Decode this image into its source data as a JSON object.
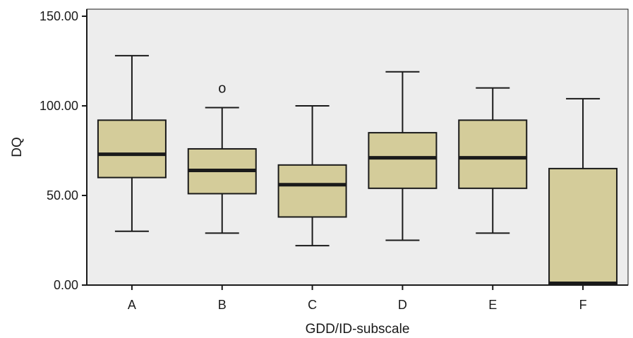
{
  "chart_data": {
    "type": "box",
    "xlabel": "GDD/ID-subscale",
    "ylabel": "DQ",
    "ylim": [
      0,
      150
    ],
    "y_ticks": [
      "0.00",
      "50.00",
      "100.00",
      "150.00"
    ],
    "categories": [
      "A",
      "B",
      "C",
      "D",
      "E",
      "F"
    ],
    "boxes": [
      {
        "category": "A",
        "min": 30,
        "q1": 60,
        "median": 73,
        "q3": 92,
        "max": 128,
        "outliers": []
      },
      {
        "category": "B",
        "min": 29,
        "q1": 51,
        "median": 64,
        "q3": 76,
        "max": 99,
        "outliers": [
          110
        ]
      },
      {
        "category": "C",
        "min": 22,
        "q1": 38,
        "median": 56,
        "q3": 67,
        "max": 100,
        "outliers": []
      },
      {
        "category": "D",
        "min": 25,
        "q1": 54,
        "median": 71,
        "q3": 85,
        "max": 119,
        "outliers": []
      },
      {
        "category": "E",
        "min": 29,
        "q1": 54,
        "median": 71,
        "q3": 92,
        "max": 110,
        "outliers": []
      },
      {
        "category": "F",
        "min": 0,
        "q1": 0,
        "median": 1,
        "q3": 65,
        "max": 104,
        "outliers": []
      }
    ],
    "outlier_marker": "o",
    "grid": false,
    "colors": {
      "plot_background": "#ededed",
      "box_fill": "#d4cc9a",
      "stroke": "#1a1a1a"
    }
  }
}
